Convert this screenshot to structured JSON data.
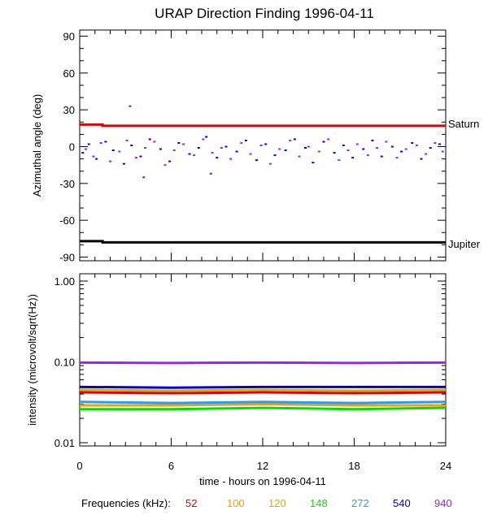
{
  "chart_data": [
    {
      "type": "scatter",
      "title": "URAP Direction Finding  1996-04-11",
      "ylabel": "Azimuthal angle (deg)",
      "xlabel": "",
      "xlim": [
        0,
        24
      ],
      "ylim": [
        -93,
        95
      ],
      "x_ticks": [
        0,
        6,
        12,
        18,
        24
      ],
      "y_ticks": [
        "90",
        "60",
        "30",
        "0",
        "-30",
        "-60",
        "-90"
      ],
      "annotations": [
        {
          "text": "Saturn",
          "y": 17
        },
        {
          "text": "Jupiter",
          "y": -78
        }
      ],
      "series": [
        {
          "color": "#e00000",
          "x": [
            0,
            1.5,
            1.5,
            24
          ],
          "y": [
            18,
            18,
            17,
            17
          ],
          "style": "line"
        },
        {
          "color": "#000000",
          "x": [
            0,
            1.5,
            1.5,
            24
          ],
          "y": [
            -77,
            -77,
            -78,
            -78
          ],
          "style": "line"
        },
        {
          "color": "#0000ff",
          "x": [
            0.2,
            0.6,
            1.1,
            1.7,
            2.2,
            2.9,
            3.4,
            4.0,
            4.6,
            5.3,
            5.9,
            6.5,
            7.2,
            7.8,
            8.3,
            9.0,
            9.6,
            10.3,
            10.9,
            11.6,
            12.2,
            12.8,
            13.5,
            14.1,
            14.8,
            15.3,
            16.0,
            16.7,
            17.3,
            17.9,
            18.6,
            19.2,
            19.8,
            20.5,
            21.1,
            21.8,
            22.4,
            23.0,
            23.6
          ],
          "y": [
            -5,
            2,
            -10,
            4,
            -3,
            -14,
            1,
            -8,
            6,
            -2,
            -12,
            3,
            -6,
            -1,
            8,
            -9,
            0,
            -4,
            5,
            -11,
            2,
            -7,
            -3,
            6,
            -1,
            -13,
            4,
            -5,
            1,
            -9,
            -2,
            5,
            -8,
            0,
            -4,
            3,
            -10,
            -1,
            2
          ],
          "style": "dots"
        },
        {
          "color": "#a020f0",
          "x": [
            0.4,
            0.9,
            1.4,
            2.0,
            2.6,
            3.1,
            3.7,
            4.3,
            4.9,
            5.6,
            6.2,
            6.8,
            7.5,
            8.1,
            8.7,
            9.3,
            9.9,
            10.6,
            11.2,
            11.9,
            12.5,
            13.1,
            13.8,
            14.4,
            15.0,
            15.7,
            16.3,
            17.0,
            17.6,
            18.2,
            18.9,
            19.5,
            20.1,
            20.8,
            21.4,
            22.1,
            22.7,
            23.3,
            23.8
          ],
          "y": [
            -2,
            -8,
            3,
            -12,
            -4,
            5,
            -9,
            -1,
            4,
            -15,
            -3,
            2,
            -7,
            6,
            -5,
            -1,
            -10,
            3,
            -6,
            1,
            -14,
            -2,
            5,
            -8,
            0,
            -4,
            6,
            -11,
            -3,
            2,
            -7,
            -1,
            4,
            -9,
            -2,
            1,
            -6,
            3,
            -4
          ],
          "style": "dots"
        },
        {
          "color": "#3030ff",
          "x": [
            3.3,
            4.2,
            8.6
          ],
          "y": [
            33,
            -25,
            -22
          ],
          "style": "dots"
        }
      ]
    },
    {
      "type": "line",
      "title": "",
      "xlabel": "time - hours on 1996-04-11",
      "ylabel": "intensity (microvolt/sqrt(Hz))",
      "xlim": [
        0,
        24
      ],
      "ylim": [
        0.01,
        1.0
      ],
      "yscale": "log",
      "x_ticks": [
        "0",
        "6",
        "12",
        "18",
        "24"
      ],
      "y_ticks": [
        {
          "label": "1.00",
          "value": 1.0
        },
        {
          "label": "0.10",
          "value": 0.1
        },
        {
          "label": "0.01",
          "value": 0.01
        }
      ],
      "legend_title": "Frequencies (kHz):",
      "legend_placement": "bottom",
      "series": [
        {
          "name": "52",
          "color": "#e00000",
          "x": [
            0,
            6,
            12,
            18,
            24
          ],
          "y": [
            0.042,
            0.041,
            0.042,
            0.041,
            0.042
          ]
        },
        {
          "name": "100",
          "color": "#ff9900",
          "x": [
            0,
            6,
            12,
            18,
            24
          ],
          "y": [
            0.029,
            0.029,
            0.03,
            0.029,
            0.029
          ]
        },
        {
          "name": "120",
          "color": "#d0b000",
          "x": [
            0,
            6,
            12,
            18,
            24
          ],
          "y": [
            0.045,
            0.044,
            0.045,
            0.044,
            0.045
          ]
        },
        {
          "name": "148",
          "color": "#00e000",
          "x": [
            0,
            6,
            12,
            18,
            24
          ],
          "y": [
            0.026,
            0.026,
            0.027,
            0.026,
            0.027
          ]
        },
        {
          "name": "272",
          "color": "#1ea0ff",
          "x": [
            0,
            6,
            12,
            18,
            24
          ],
          "y": [
            0.032,
            0.031,
            0.032,
            0.031,
            0.032
          ]
        },
        {
          "name": "540",
          "color": "#0000d0",
          "x": [
            0,
            6,
            12,
            18,
            24
          ],
          "y": [
            0.049,
            0.048,
            0.049,
            0.049,
            0.049
          ]
        },
        {
          "name": "940",
          "color": "#a020f0",
          "x": [
            0,
            6,
            12,
            18,
            24
          ],
          "y": [
            0.098,
            0.097,
            0.098,
            0.097,
            0.098
          ]
        }
      ]
    }
  ]
}
